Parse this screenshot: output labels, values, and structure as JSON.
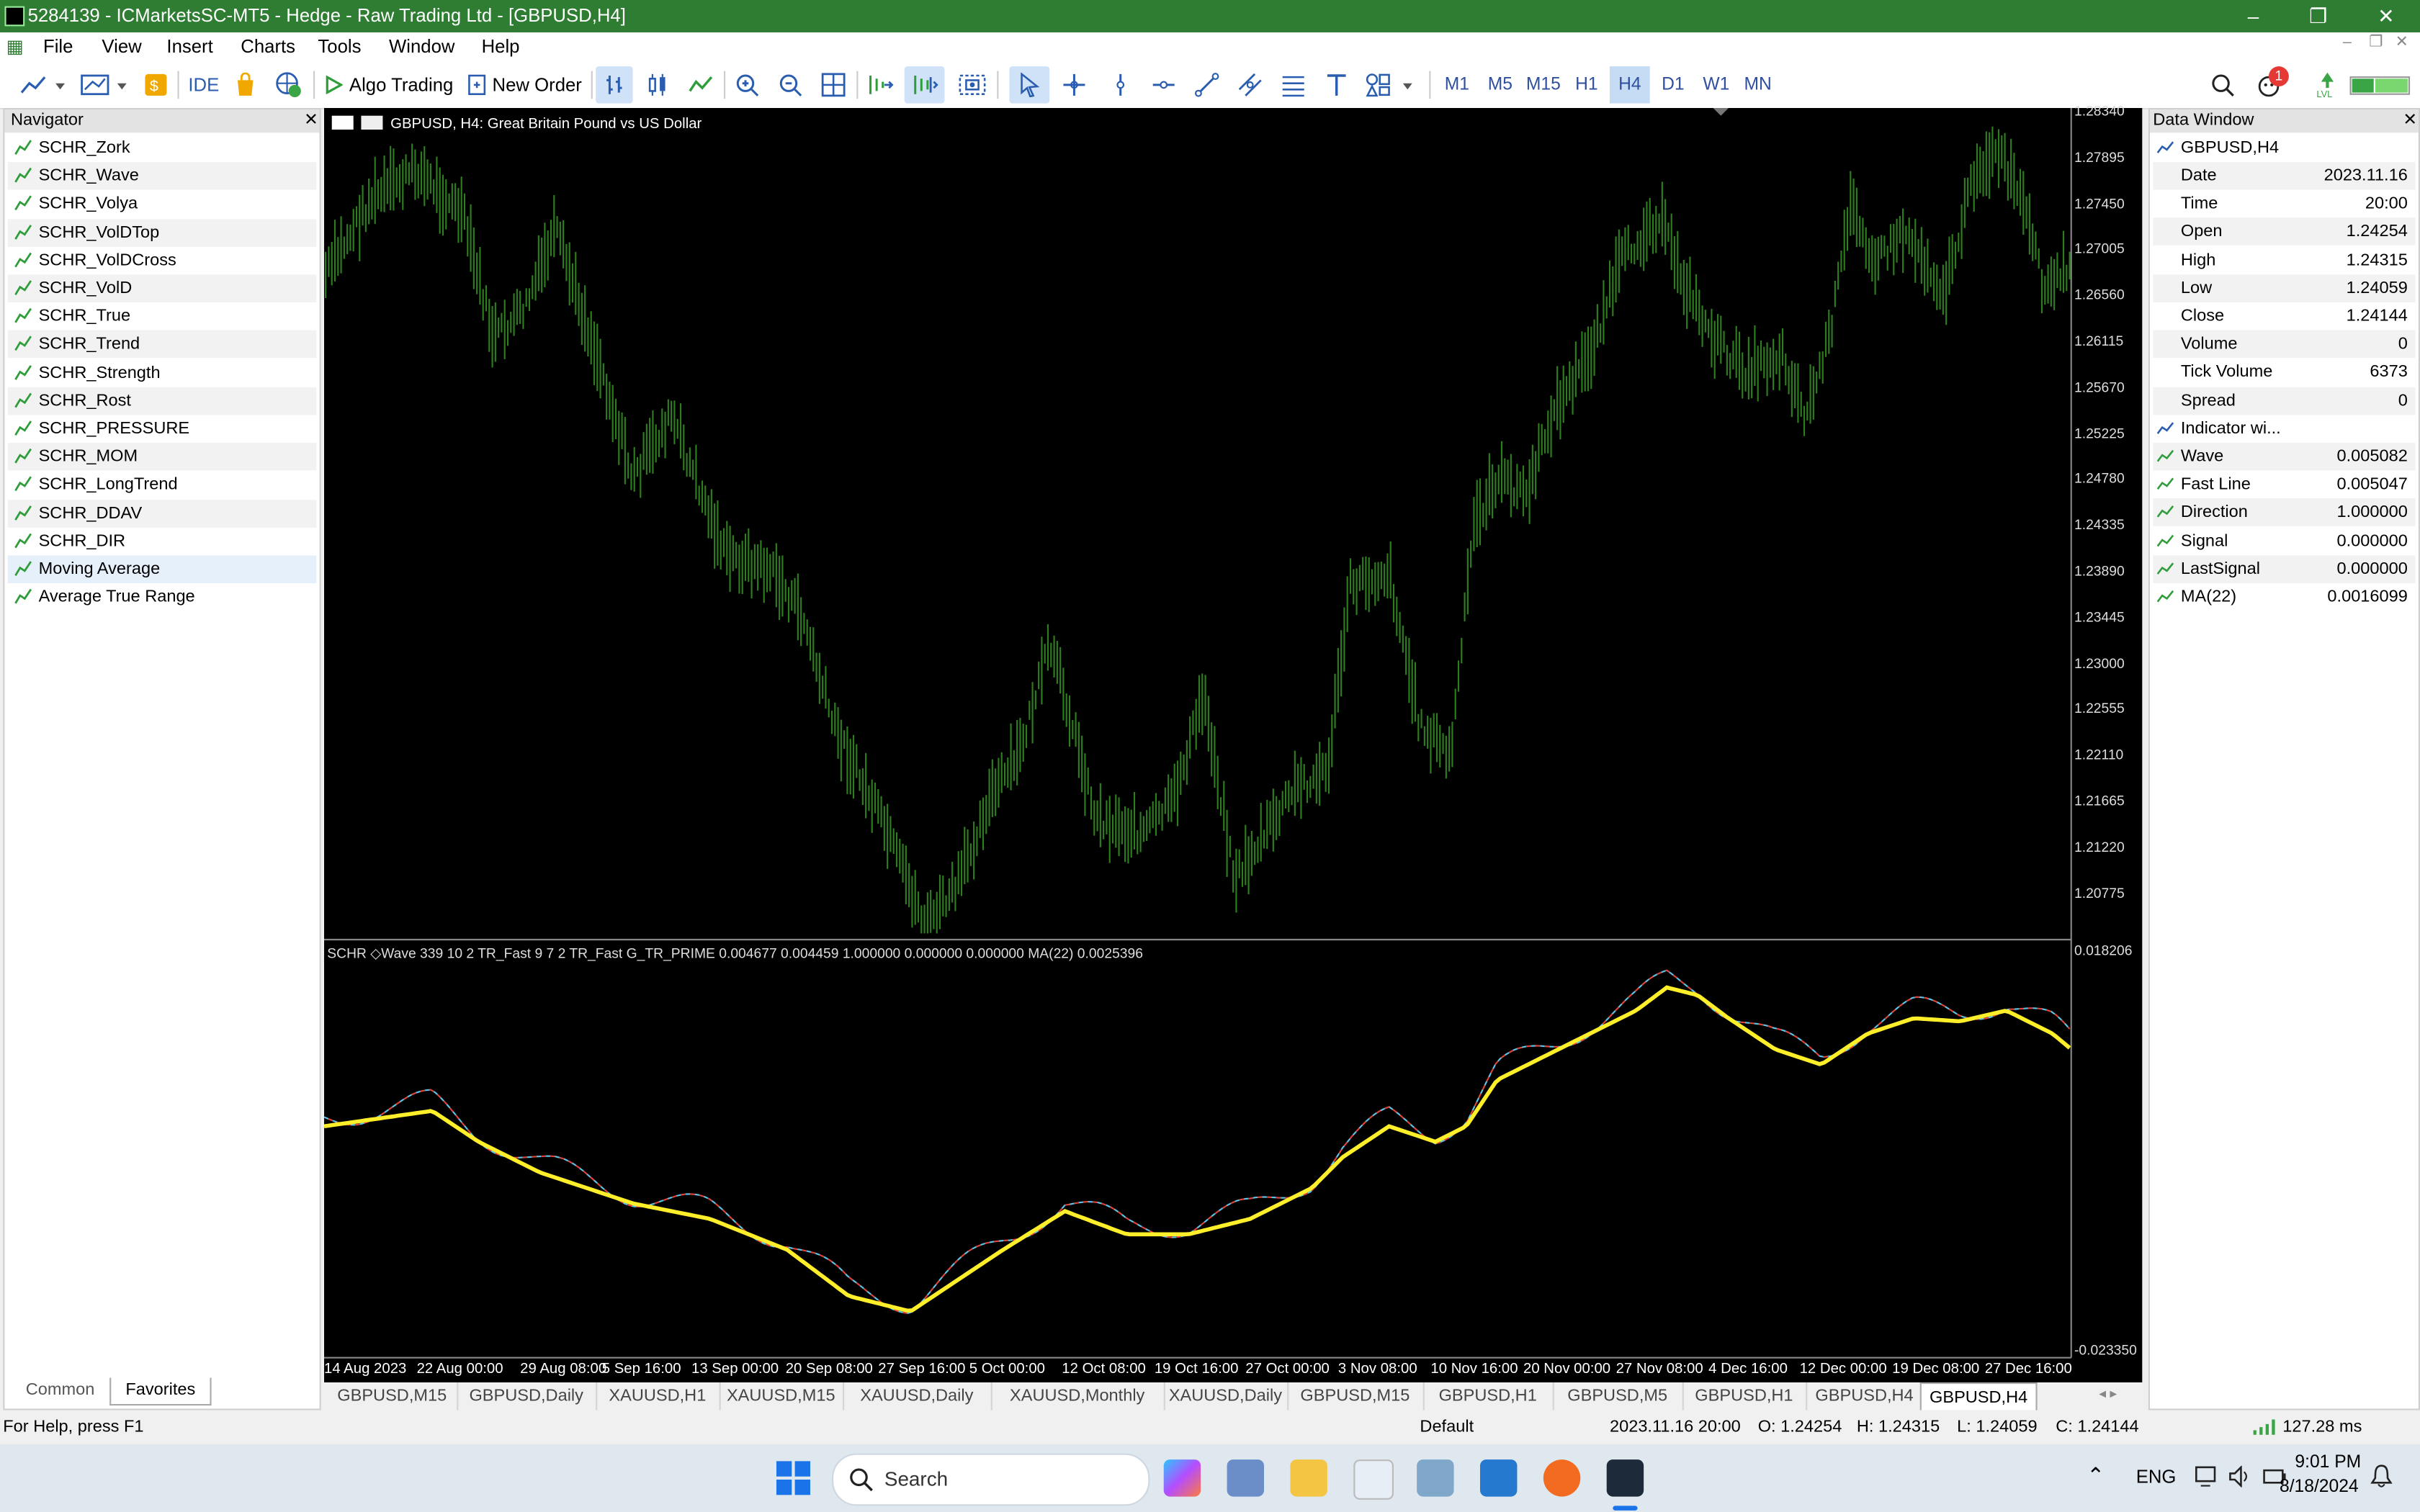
{
  "window": {
    "title": "5284139 - ICMarketsSC-MT5 - Hedge - Raw Trading Ltd - [GBPUSD,H4]"
  },
  "menu": [
    "File",
    "View",
    "Insert",
    "Charts",
    "Tools",
    "Window",
    "Help"
  ],
  "toolbar": {
    "ide": "IDE",
    "algo_trading": "Algo Trading",
    "new_order": "New Order",
    "timeframes": [
      "M1",
      "M5",
      "M15",
      "H1",
      "H4",
      "D1",
      "W1",
      "MN"
    ],
    "active_timeframe": "H4",
    "notifications": "1"
  },
  "navigator": {
    "title": "Navigator",
    "items": [
      "SCHR_Zork",
      "SCHR_Wave",
      "SCHR_Volya",
      "SCHR_VolDTop",
      "SCHR_VolDCross",
      "SCHR_VolD",
      "SCHR_True",
      "SCHR_Trend",
      "SCHR_Strength",
      "SCHR_Rost",
      "SCHR_PRESSURE",
      "SCHR_MOM",
      "SCHR_LongTrend",
      "SCHR_DDAV",
      "SCHR_DIR",
      "Moving Average",
      "Average True Range"
    ],
    "tabs": [
      "Common",
      "Favorites"
    ]
  },
  "chart": {
    "title": "GBPUSD, H4:  Great Britain Pound vs US Dollar",
    "price_ticks": [
      "1.28340",
      "1.27895",
      "1.27450",
      "1.27005",
      "1.26560",
      "1.26115",
      "1.25670",
      "1.25225",
      "1.24780",
      "1.24335",
      "1.23890",
      "1.23445",
      "1.23000",
      "1.22555",
      "1.22110",
      "1.21665",
      "1.21220",
      "1.20775"
    ],
    "indicator_label": "SCHR ◇Wave 339 10 2 TR_Fast 9 7 2 TR_Fast G_TR_PRIME 0.004677 0.004459 1.000000 0.000000 0.000000 MA(22) 0.0025396",
    "indicator_ticks": [
      "0.018206",
      "-0.023350"
    ],
    "date_ticks": [
      "14 Aug 2023",
      "22 Aug 00:00",
      "29 Aug 08:00",
      "5 Sep 16:00",
      "13 Sep 00:00",
      "20 Sep 08:00",
      "27 Sep 16:00",
      "5 Oct 00:00",
      "12 Oct 08:00",
      "19 Oct 16:00",
      "27 Oct 00:00",
      "3 Nov 08:00",
      "10 Nov 16:00",
      "20 Nov 00:00",
      "27 Nov 08:00",
      "4 Dec 16:00",
      "12 Dec 00:00",
      "19 Dec 08:00",
      "27 Dec 16:00"
    ],
    "candle_color": "#2e7d1e",
    "ma_color": "#ffef2a",
    "up_color": "#e0453a",
    "down_color": "#5fc4e8"
  },
  "chart_tabs": [
    "GBPUSD,M15",
    "GBPUSD,Daily",
    "XAUUSD,H1",
    "XAUUSD,M15",
    "XAUUSD,Daily",
    "XAUUSD,Monthly",
    "XAUUSD,Daily",
    "GBPUSD,M15",
    "GBPUSD,H1",
    "GBPUSD,M5",
    "GBPUSD,H1",
    "GBPUSD,H4",
    "GBPUSD,H4"
  ],
  "data_window": {
    "title": "Data Window",
    "symbol": "GBPUSD,H4",
    "rows": [
      {
        "k": "Date",
        "v": "2023.11.16"
      },
      {
        "k": "Time",
        "v": "20:00"
      },
      {
        "k": "Open",
        "v": "1.24254"
      },
      {
        "k": "High",
        "v": "1.24315"
      },
      {
        "k": "Low",
        "v": "1.24059"
      },
      {
        "k": "Close",
        "v": "1.24144"
      },
      {
        "k": "Volume",
        "v": "0"
      },
      {
        "k": "Tick Volume",
        "v": "6373"
      },
      {
        "k": "Spread",
        "v": "0"
      }
    ],
    "indicator_header": "Indicator wi...",
    "indicator_rows": [
      {
        "k": "Wave",
        "v": "0.005082"
      },
      {
        "k": "Fast Line",
        "v": "0.005047"
      },
      {
        "k": "Direction",
        "v": "1.000000"
      },
      {
        "k": "Signal",
        "v": "0.000000"
      },
      {
        "k": "LastSignal",
        "v": "0.000000"
      },
      {
        "k": "MA(22)",
        "v": "0.0016099"
      }
    ]
  },
  "status": {
    "help": "For Help, press F1",
    "profile": "Default",
    "datetime": "2023.11.16 20:00",
    "open": "O: 1.24254",
    "high": "H: 1.24315",
    "low": "L: 1.24059",
    "close": "C: 1.24144",
    "ping": "127.28 ms"
  },
  "taskbar": {
    "search": "Search",
    "lang": "ENG",
    "time": "9:01 PM",
    "date": "8/18/2024"
  }
}
